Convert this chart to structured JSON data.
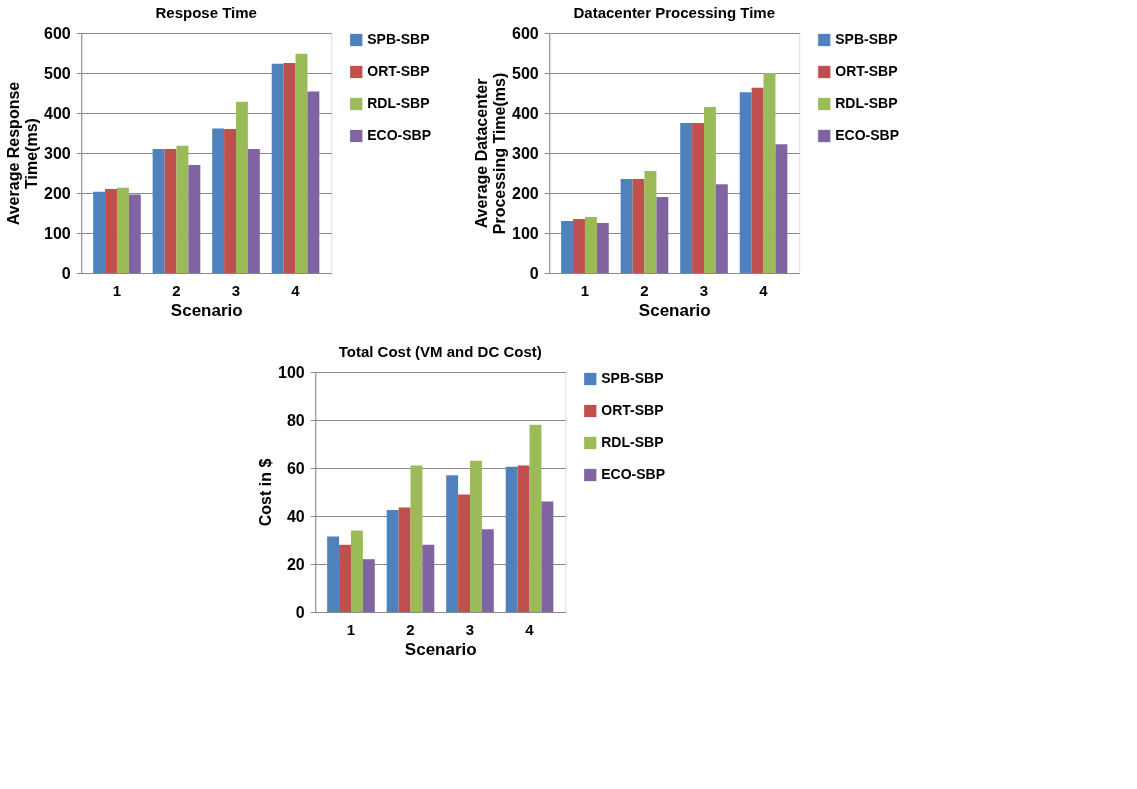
{
  "chart_data": [
    {
      "type": "bar",
      "title": "Respose Time",
      "xlabel": "Scenario",
      "ylabel": "Average Response Time(ms)",
      "categories": [
        "1",
        "2",
        "3",
        "4"
      ],
      "ylim": [
        0,
        600
      ],
      "yticks": [
        0,
        100,
        200,
        300,
        400,
        500,
        600
      ],
      "grid": "y",
      "legend": "right",
      "series": [
        {
          "name": "SPB-SBP",
          "color": "#4f81bd",
          "values": [
            203,
            310,
            361,
            523
          ]
        },
        {
          "name": "ORT-SBP",
          "color": "#c0504d",
          "values": [
            210,
            310,
            360,
            525
          ]
        },
        {
          "name": "RDL-SBP",
          "color": "#9bbb59",
          "values": [
            213,
            318,
            428,
            548
          ]
        },
        {
          "name": "ECO-SBP",
          "color": "#8064a2",
          "values": [
            196,
            270,
            310,
            454
          ]
        }
      ]
    },
    {
      "type": "bar",
      "title": "Datacenter Processing Time",
      "xlabel": "Scenario",
      "ylabel": "Average Datacenter Processing Time(ms)",
      "categories": [
        "1",
        "2",
        "3",
        "4"
      ],
      "ylim": [
        0,
        600
      ],
      "yticks": [
        0,
        100,
        200,
        300,
        400,
        500,
        600
      ],
      "grid": "y",
      "legend": "right",
      "series": [
        {
          "name": "SPB-SBP",
          "color": "#4f81bd",
          "values": [
            130,
            235,
            375,
            452
          ]
        },
        {
          "name": "ORT-SBP",
          "color": "#c0504d",
          "values": [
            135,
            235,
            375,
            463
          ]
        },
        {
          "name": "RDL-SBP",
          "color": "#9bbb59",
          "values": [
            140,
            255,
            415,
            500
          ]
        },
        {
          "name": "ECO-SBP",
          "color": "#8064a2",
          "values": [
            125,
            190,
            222,
            322
          ]
        }
      ]
    },
    {
      "type": "bar",
      "title": "Total Cost (VM and DC Cost)",
      "xlabel": "Scenario",
      "ylabel": "Cost in $",
      "categories": [
        "1",
        "2",
        "3",
        "4"
      ],
      "ylim": [
        0,
        100
      ],
      "yticks": [
        0,
        20,
        40,
        60,
        80,
        100
      ],
      "grid": "y",
      "legend": "right",
      "series": [
        {
          "name": "SPB-SBP",
          "color": "#4f81bd",
          "values": [
            31.5,
            42.5,
            57,
            60.5
          ]
        },
        {
          "name": "ORT-SBP",
          "color": "#c0504d",
          "values": [
            28,
            43.5,
            49,
            61
          ]
        },
        {
          "name": "RDL-SBP",
          "color": "#9bbb59",
          "values": [
            34,
            61,
            63,
            78
          ]
        },
        {
          "name": "ECO-SBP",
          "color": "#8064a2",
          "values": [
            22,
            28,
            34.5,
            46
          ]
        }
      ]
    }
  ]
}
